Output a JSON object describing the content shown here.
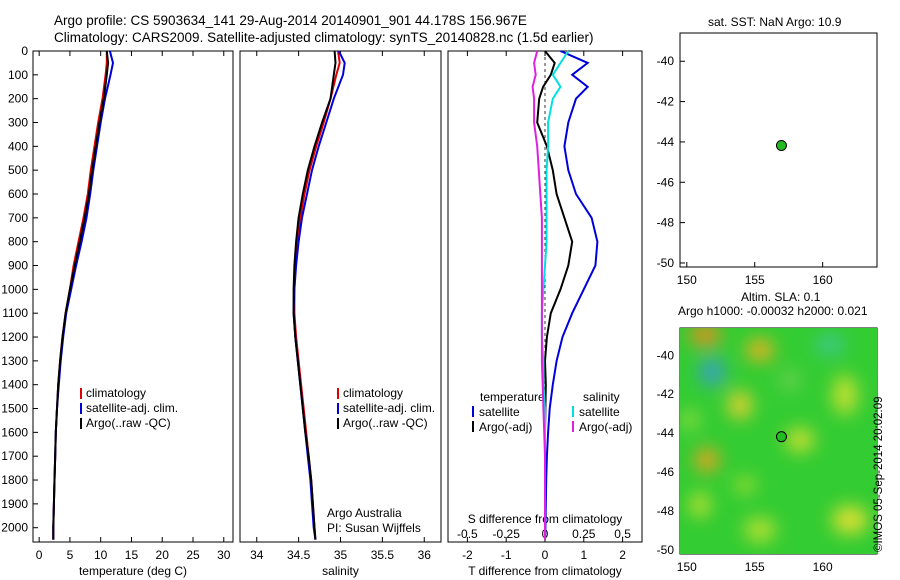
{
  "header": {
    "line1": "Argo profile: CS 5903634_141 29-Aug-2014 20140901_901 44.178S 156.967E",
    "line2": "Climatology: CARS2009. Satellite-adjusted climatology: synTS_20140828.nc (1.5d earlier)"
  },
  "panels": {
    "sst_title": "sat. SST: NaN Argo: 10.9",
    "sla_title1": "Altim. SLA: 0.1",
    "sla_title2": "Argo h1000: -0.00032 h2000: 0.021",
    "stamp": "©IMOS 05-Sep-2014 20:02:09",
    "credit1": "Argo Australia",
    "credit2": "PI: Susan Wijffels"
  },
  "colors": {
    "climatology": "#e00000",
    "satellite": "#0000dd",
    "argo": "#000000",
    "cyan": "#00e0e0",
    "magenta": "#e020e0",
    "float": "#22bb22"
  },
  "chart_data": [
    {
      "type": "line",
      "xlabel": "temperature (deg C)",
      "ylabel": "",
      "xlim": [
        -1,
        31.5
      ],
      "ylim": [
        2060,
        0
      ],
      "xticks": [
        "0",
        "5",
        "10",
        "15",
        "20",
        "25",
        "30"
      ],
      "yticks": [
        "0",
        "100",
        "200",
        "300",
        "400",
        "500",
        "600",
        "700",
        "800",
        "900",
        "1000",
        "1100",
        "1200",
        "1300",
        "1400",
        "1500",
        "1600",
        "1700",
        "1800",
        "1900",
        "2000"
      ],
      "legend": [
        "climatology",
        "satellite-adj. clim.",
        "Argo(..raw -QC)"
      ],
      "series": [
        {
          "name": "climatology",
          "color": "#e00000",
          "depth": [
            0,
            50,
            100,
            200,
            300,
            400,
            500,
            600,
            700,
            800,
            900,
            1000,
            1100,
            1200,
            1300,
            1400,
            1500,
            1600,
            1700,
            1800,
            1900,
            2000,
            2050
          ],
          "values": [
            11.0,
            11.0,
            10.8,
            10.3,
            9.6,
            9.0,
            8.4,
            7.9,
            7.2,
            6.4,
            5.6,
            5.0,
            4.3,
            3.8,
            3.4,
            3.1,
            2.9,
            2.7,
            2.6,
            2.5,
            2.4,
            2.3,
            2.3
          ]
        },
        {
          "name": "satellite-adj. clim.",
          "color": "#0000dd",
          "depth": [
            0,
            50,
            100,
            200,
            300,
            400,
            500,
            600,
            700,
            800,
            900,
            1000,
            1100,
            1200,
            1300,
            1400,
            1500,
            1600,
            1700,
            1800,
            1900,
            2000,
            2050
          ],
          "values": [
            11.5,
            12.0,
            11.6,
            10.7,
            10.0,
            9.4,
            8.8,
            8.3,
            7.7,
            6.9,
            6.0,
            5.2,
            4.4,
            3.9,
            3.5,
            3.2,
            2.9,
            2.7,
            2.6,
            2.5,
            2.4,
            2.3,
            2.3
          ]
        },
        {
          "name": "Argo(..raw -QC)",
          "color": "#000000",
          "depth": [
            0,
            50,
            100,
            200,
            300,
            400,
            500,
            600,
            700,
            800,
            900,
            1000,
            1100,
            1200,
            1300,
            1400,
            1500,
            1600,
            1700,
            1800,
            1900,
            2000,
            2050
          ],
          "values": [
            11.0,
            11.2,
            11.0,
            10.5,
            9.8,
            9.2,
            8.6,
            8.1,
            7.4,
            6.6,
            5.8,
            5.0,
            4.3,
            3.8,
            3.4,
            3.1,
            2.9,
            2.7,
            2.6,
            2.5,
            2.4,
            2.3,
            2.3
          ]
        }
      ]
    },
    {
      "type": "line",
      "xlabel": "salinity",
      "xlim": [
        33.8,
        36.2
      ],
      "ylim": [
        2060,
        0
      ],
      "xticks": [
        "34",
        "34.5",
        "35",
        "35.5",
        "36"
      ],
      "legend": [
        "climatology",
        "satellite-adj. clim.",
        "Argo(..raw -QC)"
      ],
      "series": [
        {
          "name": "climatology",
          "color": "#e00000",
          "depth": [
            0,
            50,
            100,
            200,
            300,
            400,
            500,
            600,
            700,
            800,
            900,
            1000,
            1100,
            1200,
            1300,
            1400,
            1500,
            1600,
            1700,
            1800,
            1900,
            2000,
            2050
          ],
          "values": [
            34.97,
            34.99,
            34.95,
            34.88,
            34.8,
            34.71,
            34.63,
            34.57,
            34.52,
            34.48,
            34.46,
            34.45,
            34.45,
            34.47,
            34.5,
            34.53,
            34.56,
            34.59,
            34.62,
            34.65,
            34.67,
            34.69,
            34.7
          ]
        },
        {
          "name": "satellite-adj. clim.",
          "color": "#0000dd",
          "depth": [
            0,
            50,
            100,
            200,
            300,
            400,
            500,
            600,
            700,
            800,
            900,
            1000,
            1100,
            1200,
            1300,
            1400,
            1500,
            1600,
            1700,
            1800,
            1900,
            2000,
            2050
          ],
          "values": [
            34.98,
            35.05,
            35.03,
            34.92,
            34.83,
            34.74,
            34.66,
            34.6,
            34.54,
            34.5,
            34.47,
            34.45,
            34.44,
            34.46,
            34.49,
            34.52,
            34.55,
            34.58,
            34.61,
            34.64,
            34.66,
            34.68,
            34.7
          ]
        },
        {
          "name": "Argo(..raw -QC)",
          "color": "#000000",
          "depth": [
            0,
            50,
            100,
            200,
            300,
            400,
            500,
            600,
            700,
            800,
            900,
            1000,
            1100,
            1200,
            1300,
            1400,
            1500,
            1600,
            1700,
            1800,
            1900,
            2000,
            2050
          ],
          "values": [
            34.93,
            34.94,
            34.92,
            34.88,
            34.78,
            34.69,
            34.61,
            34.55,
            34.5,
            34.47,
            34.45,
            34.44,
            34.44,
            34.46,
            34.49,
            34.52,
            34.55,
            34.58,
            34.62,
            34.65,
            34.67,
            34.69,
            34.7
          ]
        }
      ]
    },
    {
      "type": "line",
      "xlabel": "T difference from climatology",
      "xlabel_top": "S difference from climatology",
      "xlim": [
        -2.5,
        2.5
      ],
      "ylim": [
        2060,
        0
      ],
      "xticks": [
        "-2",
        "-1",
        "0",
        "1",
        "2"
      ],
      "xticks_s": [
        "-0.5",
        "-0.25",
        "0",
        "0.25",
        "0.5"
      ],
      "legend_t": {
        "title": "temperature",
        "items": [
          "satellite",
          "Argo(-adj)"
        ]
      },
      "legend_s": {
        "title": "salinity",
        "items": [
          "satellite",
          "Argo(-adj)"
        ]
      },
      "series": [
        {
          "name": "temperature satellite",
          "color": "#0000dd",
          "depth": [
            0,
            50,
            100,
            150,
            200,
            300,
            400,
            500,
            600,
            700,
            800,
            900,
            1000,
            1100,
            1200,
            1300,
            1400,
            1500,
            1600,
            1700,
            1800,
            1900,
            2000,
            2050
          ],
          "values": [
            0.4,
            1.1,
            0.7,
            1.1,
            0.8,
            0.6,
            0.5,
            0.6,
            0.8,
            1.2,
            1.35,
            1.3,
            1.0,
            0.7,
            0.45,
            0.3,
            0.2,
            0.12,
            0.08,
            0.05,
            0.03,
            0.02,
            0.01,
            0.0
          ]
        },
        {
          "name": "temperature Argo(-adj)",
          "color": "#000000",
          "depth": [
            0,
            50,
            100,
            150,
            200,
            300,
            400,
            500,
            600,
            700,
            800,
            900,
            1000,
            1100,
            1200,
            1300,
            1400,
            1500,
            1600,
            1700,
            1800,
            1900,
            2000,
            2050
          ],
          "values": [
            0.0,
            0.25,
            0.15,
            -0.05,
            -0.15,
            -0.2,
            0.05,
            0.2,
            0.3,
            0.5,
            0.7,
            0.6,
            0.4,
            0.15,
            0.05,
            0.0,
            0.02,
            0.01,
            0.0,
            0.0,
            0.0,
            0.0,
            0.0,
            0.0
          ]
        },
        {
          "name": "salinity satellite",
          "color": "#00e0e0",
          "depth": [
            0,
            50,
            100,
            150,
            200,
            300,
            400,
            500,
            600,
            700,
            800,
            900,
            1000,
            1100,
            1200,
            1300,
            1400,
            1500,
            1600,
            1700,
            1800,
            1900,
            2000,
            2050
          ],
          "values": [
            0.15,
            0.1,
            0.05,
            0.1,
            0.05,
            0.02,
            0.02,
            0.01,
            0.01,
            0.01,
            0.01,
            0.0,
            -0.01,
            -0.02,
            -0.02,
            -0.01,
            -0.01,
            0.0,
            0.0,
            0.0,
            0.0,
            0.0,
            0.0,
            0.0
          ]
        },
        {
          "name": "salinity Argo(-adj)",
          "color": "#e020e0",
          "depth": [
            0,
            50,
            100,
            150,
            200,
            300,
            400,
            500,
            600,
            700,
            800,
            900,
            1000,
            1100,
            1200,
            1300,
            1400,
            1500,
            1600,
            1700,
            1800,
            1900,
            2000,
            2050
          ],
          "values": [
            -0.05,
            -0.07,
            -0.06,
            -0.08,
            -0.07,
            -0.07,
            -0.05,
            -0.04,
            -0.03,
            -0.02,
            -0.02,
            -0.02,
            -0.02,
            -0.02,
            -0.02,
            -0.02,
            -0.015,
            -0.01,
            -0.005,
            0.0,
            0.0,
            0.0,
            0.0,
            0.0
          ]
        }
      ]
    },
    {
      "type": "scatter",
      "title": "sat. SST: NaN Argo: 10.9",
      "xlim": [
        149.5,
        164
      ],
      "ylim": [
        -50.2,
        -38.6
      ],
      "xticks": [
        "150",
        "155",
        "160"
      ],
      "yticks": [
        "-40",
        "-42",
        "-44",
        "-46",
        "-48",
        "-50"
      ],
      "points": [
        {
          "x": 156.967,
          "y": -44.178
        }
      ]
    },
    {
      "type": "heatmap",
      "title": "Altim. SLA: 0.1",
      "xlim": [
        149.5,
        164
      ],
      "ylim": [
        -50.2,
        -38.6
      ],
      "xticks": [
        "150",
        "155",
        "160"
      ],
      "yticks": [
        "-40",
        "-42",
        "-44",
        "-46",
        "-48",
        "-50"
      ],
      "points": [
        {
          "x": 156.967,
          "y": -44.178
        }
      ]
    }
  ]
}
